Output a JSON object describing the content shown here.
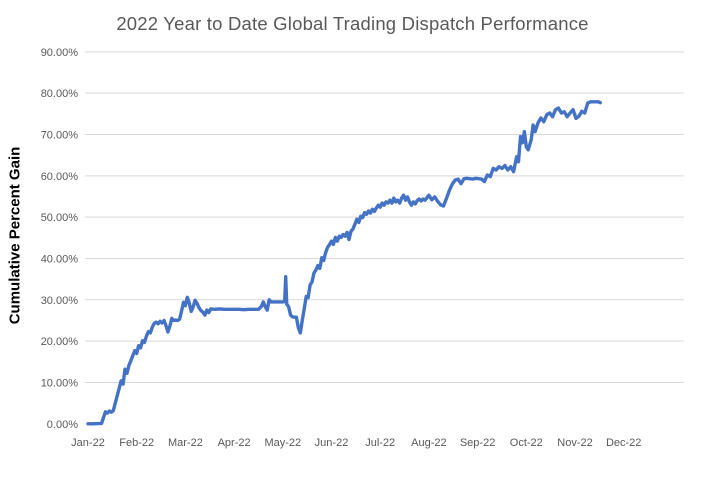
{
  "title": "2022 Year to Date Global Trading Dispatch Performance",
  "y_axis_title": "Cumulative Percent Gain",
  "colors": {
    "line": "#4472C4",
    "gridline": "#D9D9D9",
    "tick_text": "#595959",
    "title_text": "#595959"
  },
  "chart_data": {
    "type": "line",
    "title": "2022 Year to Date Global Trading Dispatch Performance",
    "xlabel": "",
    "ylabel": "Cumulative Percent Gain",
    "x_unit": "months_from_jan_2022",
    "xlim": [
      0,
      12.25
    ],
    "ylim": [
      0,
      90
    ],
    "grid": "horizontal_only",
    "legend": "none",
    "x_tick_labels": [
      "Jan-22",
      "Feb-22",
      "Mar-22",
      "Apr-22",
      "May-22",
      "Jun-22",
      "Jul-22",
      "Aug-22",
      "Sep-22",
      "Oct-22",
      "Nov-22",
      "Dec-22"
    ],
    "y_tick_labels": [
      "0.00%",
      "10.00%",
      "20.00%",
      "30.00%",
      "40.00%",
      "50.00%",
      "60.00%",
      "70.00%",
      "80.00%",
      "90.00%"
    ],
    "y_tick_values": [
      0,
      10,
      20,
      30,
      40,
      50,
      60,
      70,
      80,
      90
    ],
    "points": [
      [
        0.0,
        0.0
      ],
      [
        0.1,
        0.0
      ],
      [
        0.2,
        0.05
      ],
      [
        0.28,
        0.1
      ],
      [
        0.32,
        1.6
      ],
      [
        0.36,
        2.9
      ],
      [
        0.4,
        2.6
      ],
      [
        0.44,
        3.1
      ],
      [
        0.48,
        2.8
      ],
      [
        0.52,
        3.2
      ],
      [
        0.56,
        5.0
      ],
      [
        0.6,
        6.8
      ],
      [
        0.64,
        8.6
      ],
      [
        0.68,
        10.4
      ],
      [
        0.72,
        9.6
      ],
      [
        0.76,
        13.2
      ],
      [
        0.8,
        12.2
      ],
      [
        0.84,
        14.1
      ],
      [
        0.88,
        15.3
      ],
      [
        0.92,
        16.5
      ],
      [
        0.96,
        17.7
      ],
      [
        1.0,
        17.0
      ],
      [
        1.04,
        18.9
      ],
      [
        1.08,
        18.4
      ],
      [
        1.12,
        20.1
      ],
      [
        1.16,
        19.7
      ],
      [
        1.2,
        21.2
      ],
      [
        1.24,
        22.3
      ],
      [
        1.28,
        22.0
      ],
      [
        1.32,
        23.4
      ],
      [
        1.36,
        24.3
      ],
      [
        1.4,
        24.6
      ],
      [
        1.44,
        24.2
      ],
      [
        1.48,
        24.8
      ],
      [
        1.52,
        24.4
      ],
      [
        1.56,
        25.0
      ],
      [
        1.6,
        23.8
      ],
      [
        1.64,
        22.2
      ],
      [
        1.68,
        23.6
      ],
      [
        1.72,
        25.5
      ],
      [
        1.76,
        25.0
      ],
      [
        1.8,
        25.1
      ],
      [
        1.84,
        25.0
      ],
      [
        1.88,
        25.3
      ],
      [
        1.92,
        27.2
      ],
      [
        1.96,
        29.4
      ],
      [
        2.0,
        28.6
      ],
      [
        2.04,
        30.6
      ],
      [
        2.08,
        29.2
      ],
      [
        2.12,
        27.2
      ],
      [
        2.16,
        28.3
      ],
      [
        2.2,
        29.9
      ],
      [
        2.24,
        29.1
      ],
      [
        2.28,
        28.1
      ],
      [
        2.32,
        27.4
      ],
      [
        2.36,
        27.0
      ],
      [
        2.4,
        26.3
      ],
      [
        2.44,
        27.5
      ],
      [
        2.48,
        26.9
      ],
      [
        2.52,
        27.8
      ],
      [
        2.6,
        27.7
      ],
      [
        2.7,
        27.8
      ],
      [
        2.8,
        27.7
      ],
      [
        2.9,
        27.7
      ],
      [
        3.0,
        27.7
      ],
      [
        3.1,
        27.7
      ],
      [
        3.2,
        27.6
      ],
      [
        3.3,
        27.7
      ],
      [
        3.4,
        27.7
      ],
      [
        3.5,
        27.7
      ],
      [
        3.56,
        28.4
      ],
      [
        3.6,
        29.5
      ],
      [
        3.64,
        28.3
      ],
      [
        3.68,
        27.5
      ],
      [
        3.72,
        30.0
      ],
      [
        3.76,
        29.5
      ],
      [
        3.82,
        29.5
      ],
      [
        3.88,
        29.5
      ],
      [
        3.94,
        29.5
      ],
      [
        4.0,
        29.5
      ],
      [
        4.04,
        29.6
      ],
      [
        4.06,
        35.6
      ],
      [
        4.08,
        29.0
      ],
      [
        4.12,
        28.3
      ],
      [
        4.16,
        26.3
      ],
      [
        4.2,
        25.9
      ],
      [
        4.24,
        25.8
      ],
      [
        4.28,
        25.8
      ],
      [
        4.32,
        23.2
      ],
      [
        4.36,
        22.0
      ],
      [
        4.4,
        25.1
      ],
      [
        4.44,
        27.8
      ],
      [
        4.48,
        30.8
      ],
      [
        4.52,
        30.5
      ],
      [
        4.56,
        33.6
      ],
      [
        4.6,
        34.3
      ],
      [
        4.64,
        36.5
      ],
      [
        4.68,
        37.2
      ],
      [
        4.72,
        38.3
      ],
      [
        4.76,
        37.6
      ],
      [
        4.8,
        40.2
      ],
      [
        4.84,
        39.5
      ],
      [
        4.88,
        41.5
      ],
      [
        4.92,
        42.7
      ],
      [
        4.96,
        43.4
      ],
      [
        5.0,
        44.2
      ],
      [
        5.04,
        43.4
      ],
      [
        5.08,
        45.1
      ],
      [
        5.12,
        44.2
      ],
      [
        5.16,
        45.4
      ],
      [
        5.2,
        45.1
      ],
      [
        5.24,
        45.8
      ],
      [
        5.28,
        45.4
      ],
      [
        5.32,
        46.3
      ],
      [
        5.36,
        44.6
      ],
      [
        5.4,
        46.6
      ],
      [
        5.44,
        47.1
      ],
      [
        5.48,
        48.3
      ],
      [
        5.52,
        49.5
      ],
      [
        5.56,
        48.7
      ],
      [
        5.6,
        50.2
      ],
      [
        5.64,
        49.9
      ],
      [
        5.68,
        51.1
      ],
      [
        5.72,
        50.7
      ],
      [
        5.76,
        51.5
      ],
      [
        5.8,
        51.0
      ],
      [
        5.84,
        51.9
      ],
      [
        5.88,
        51.4
      ],
      [
        5.92,
        52.2
      ],
      [
        5.96,
        52.9
      ],
      [
        6.0,
        52.4
      ],
      [
        6.04,
        53.4
      ],
      [
        6.08,
        52.9
      ],
      [
        6.12,
        53.7
      ],
      [
        6.16,
        53.4
      ],
      [
        6.2,
        54.1
      ],
      [
        6.24,
        53.4
      ],
      [
        6.28,
        54.6
      ],
      [
        6.32,
        53.7
      ],
      [
        6.36,
        54.1
      ],
      [
        6.4,
        53.4
      ],
      [
        6.44,
        54.6
      ],
      [
        6.48,
        55.3
      ],
      [
        6.52,
        54.1
      ],
      [
        6.56,
        54.9
      ],
      [
        6.6,
        53.7
      ],
      [
        6.64,
        52.9
      ],
      [
        6.68,
        53.7
      ],
      [
        6.72,
        53.2
      ],
      [
        6.76,
        54.0
      ],
      [
        6.8,
        54.4
      ],
      [
        6.84,
        53.9
      ],
      [
        6.88,
        54.4
      ],
      [
        6.92,
        54.1
      ],
      [
        6.96,
        54.7
      ],
      [
        7.0,
        55.3
      ],
      [
        7.06,
        54.2
      ],
      [
        7.12,
        54.9
      ],
      [
        7.18,
        53.8
      ],
      [
        7.24,
        53.0
      ],
      [
        7.3,
        52.7
      ],
      [
        7.36,
        54.5
      ],
      [
        7.42,
        56.5
      ],
      [
        7.48,
        58.0
      ],
      [
        7.54,
        59.0
      ],
      [
        7.6,
        59.2
      ],
      [
        7.66,
        58.1
      ],
      [
        7.72,
        59.3
      ],
      [
        7.78,
        59.4
      ],
      [
        7.84,
        59.3
      ],
      [
        7.9,
        59.2
      ],
      [
        7.96,
        59.4
      ],
      [
        8.02,
        59.3
      ],
      [
        8.08,
        59.2
      ],
      [
        8.14,
        58.6
      ],
      [
        8.2,
        60.2
      ],
      [
        8.26,
        59.8
      ],
      [
        8.32,
        61.8
      ],
      [
        8.38,
        61.4
      ],
      [
        8.44,
        62.2
      ],
      [
        8.5,
        61.8
      ],
      [
        8.56,
        62.5
      ],
      [
        8.62,
        61.4
      ],
      [
        8.68,
        62.2
      ],
      [
        8.74,
        61.0
      ],
      [
        8.8,
        64.6
      ],
      [
        8.84,
        63.4
      ],
      [
        8.88,
        69.5
      ],
      [
        8.92,
        68.0
      ],
      [
        8.96,
        70.7
      ],
      [
        9.0,
        67.0
      ],
      [
        9.04,
        66.3
      ],
      [
        9.1,
        68.7
      ],
      [
        9.14,
        72.3
      ],
      [
        9.18,
        70.7
      ],
      [
        9.24,
        72.8
      ],
      [
        9.3,
        74.0
      ],
      [
        9.36,
        73.1
      ],
      [
        9.42,
        74.8
      ],
      [
        9.48,
        75.2
      ],
      [
        9.54,
        74.3
      ],
      [
        9.6,
        76.0
      ],
      [
        9.66,
        76.4
      ],
      [
        9.72,
        75.2
      ],
      [
        9.78,
        75.5
      ],
      [
        9.84,
        74.3
      ],
      [
        9.9,
        75.2
      ],
      [
        9.96,
        76.0
      ],
      [
        10.02,
        73.9
      ],
      [
        10.08,
        74.4
      ],
      [
        10.14,
        75.6
      ],
      [
        10.2,
        75.2
      ],
      [
        10.26,
        77.6
      ],
      [
        10.32,
        77.9
      ],
      [
        10.4,
        77.9
      ],
      [
        10.48,
        77.9
      ],
      [
        10.52,
        77.7
      ]
    ]
  }
}
